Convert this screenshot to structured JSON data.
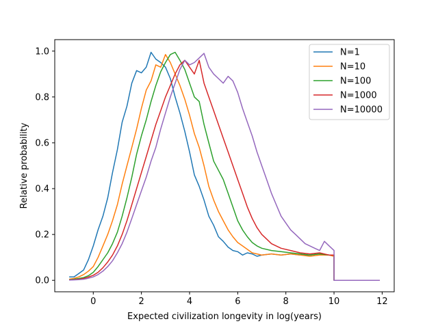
{
  "chart_data": {
    "type": "line",
    "xlabel": "Expected civilization longevity in log(years)",
    "ylabel": "Relative probability",
    "xlim": [
      -1.6,
      12.5
    ],
    "ylim": [
      -0.05,
      1.05
    ],
    "xticks": [
      0,
      2,
      4,
      6,
      8,
      10,
      12
    ],
    "yticks": [
      0.0,
      0.2,
      0.4,
      0.6,
      0.8,
      1.0
    ],
    "xtick_labels": [
      "0",
      "2",
      "4",
      "6",
      "8",
      "10",
      "12"
    ],
    "ytick_labels": [
      "0.0",
      "0.2",
      "0.4",
      "0.6",
      "0.8",
      "1.0"
    ],
    "grid": false,
    "legend_position": "top-right",
    "series": [
      {
        "name": "N=1",
        "color": "#1f77b4",
        "points": [
          [
            -1.0,
            0.015
          ],
          [
            -0.8,
            0.015
          ],
          [
            -0.6,
            0.03
          ],
          [
            -0.4,
            0.045
          ],
          [
            -0.2,
            0.09
          ],
          [
            0.0,
            0.15
          ],
          [
            0.2,
            0.22
          ],
          [
            0.4,
            0.28
          ],
          [
            0.6,
            0.36
          ],
          [
            0.8,
            0.47
          ],
          [
            1.0,
            0.57
          ],
          [
            1.2,
            0.69
          ],
          [
            1.4,
            0.76
          ],
          [
            1.6,
            0.86
          ],
          [
            1.8,
            0.915
          ],
          [
            2.0,
            0.905
          ],
          [
            2.2,
            0.93
          ],
          [
            2.4,
            0.995
          ],
          [
            2.6,
            0.965
          ],
          [
            2.8,
            0.95
          ],
          [
            3.0,
            0.93
          ],
          [
            3.2,
            0.88
          ],
          [
            3.4,
            0.8
          ],
          [
            3.6,
            0.73
          ],
          [
            3.8,
            0.65
          ],
          [
            4.0,
            0.56
          ],
          [
            4.2,
            0.46
          ],
          [
            4.4,
            0.41
          ],
          [
            4.6,
            0.35
          ],
          [
            4.8,
            0.28
          ],
          [
            5.0,
            0.24
          ],
          [
            5.2,
            0.19
          ],
          [
            5.4,
            0.17
          ],
          [
            5.6,
            0.145
          ],
          [
            5.8,
            0.13
          ],
          [
            6.0,
            0.125
          ],
          [
            6.2,
            0.11
          ],
          [
            6.4,
            0.12
          ],
          [
            6.6,
            0.115
          ],
          [
            6.8,
            0.105
          ],
          [
            7.0,
            0.11
          ],
          [
            7.4,
            0.115
          ],
          [
            7.8,
            0.11
          ],
          [
            8.2,
            0.115
          ],
          [
            8.6,
            0.11
          ],
          [
            9.0,
            0.11
          ],
          [
            9.4,
            0.115
          ],
          [
            9.8,
            0.11
          ],
          [
            10.0,
            0.105
          ],
          [
            10.0,
            0.0
          ],
          [
            11.9,
            0.0
          ]
        ]
      },
      {
        "name": "N=10",
        "color": "#ff7f0e",
        "points": [
          [
            -1.0,
            0.005
          ],
          [
            -0.8,
            0.008
          ],
          [
            -0.6,
            0.015
          ],
          [
            -0.4,
            0.025
          ],
          [
            -0.2,
            0.04
          ],
          [
            0.0,
            0.06
          ],
          [
            0.2,
            0.1
          ],
          [
            0.4,
            0.15
          ],
          [
            0.6,
            0.2
          ],
          [
            0.8,
            0.26
          ],
          [
            1.0,
            0.33
          ],
          [
            1.2,
            0.42
          ],
          [
            1.4,
            0.5
          ],
          [
            1.6,
            0.58
          ],
          [
            1.8,
            0.66
          ],
          [
            2.0,
            0.75
          ],
          [
            2.2,
            0.83
          ],
          [
            2.4,
            0.87
          ],
          [
            2.6,
            0.94
          ],
          [
            2.8,
            0.93
          ],
          [
            3.0,
            0.985
          ],
          [
            3.2,
            0.95
          ],
          [
            3.4,
            0.9
          ],
          [
            3.6,
            0.85
          ],
          [
            3.8,
            0.79
          ],
          [
            4.0,
            0.72
          ],
          [
            4.2,
            0.64
          ],
          [
            4.4,
            0.58
          ],
          [
            4.6,
            0.5
          ],
          [
            4.8,
            0.41
          ],
          [
            5.0,
            0.35
          ],
          [
            5.2,
            0.3
          ],
          [
            5.4,
            0.26
          ],
          [
            5.6,
            0.22
          ],
          [
            5.8,
            0.19
          ],
          [
            6.0,
            0.165
          ],
          [
            6.2,
            0.15
          ],
          [
            6.4,
            0.135
          ],
          [
            6.6,
            0.12
          ],
          [
            6.8,
            0.115
          ],
          [
            7.0,
            0.11
          ],
          [
            7.4,
            0.115
          ],
          [
            7.8,
            0.11
          ],
          [
            8.2,
            0.115
          ],
          [
            8.6,
            0.11
          ],
          [
            9.0,
            0.105
          ],
          [
            9.4,
            0.11
          ],
          [
            9.8,
            0.11
          ],
          [
            10.0,
            0.105
          ],
          [
            10.0,
            0.0
          ],
          [
            11.9,
            0.0
          ]
        ]
      },
      {
        "name": "N=100",
        "color": "#2ca02c",
        "points": [
          [
            -1.0,
            0.003
          ],
          [
            -0.8,
            0.005
          ],
          [
            -0.6,
            0.008
          ],
          [
            -0.4,
            0.012
          ],
          [
            -0.2,
            0.02
          ],
          [
            0.0,
            0.035
          ],
          [
            0.2,
            0.06
          ],
          [
            0.4,
            0.09
          ],
          [
            0.6,
            0.12
          ],
          [
            0.8,
            0.16
          ],
          [
            1.0,
            0.21
          ],
          [
            1.2,
            0.28
          ],
          [
            1.4,
            0.36
          ],
          [
            1.6,
            0.45
          ],
          [
            1.8,
            0.55
          ],
          [
            2.0,
            0.63
          ],
          [
            2.2,
            0.7
          ],
          [
            2.4,
            0.78
          ],
          [
            2.6,
            0.85
          ],
          [
            2.8,
            0.91
          ],
          [
            3.0,
            0.95
          ],
          [
            3.2,
            0.985
          ],
          [
            3.4,
            0.995
          ],
          [
            3.6,
            0.96
          ],
          [
            3.8,
            0.92
          ],
          [
            4.0,
            0.86
          ],
          [
            4.2,
            0.8
          ],
          [
            4.4,
            0.78
          ],
          [
            4.6,
            0.68
          ],
          [
            4.8,
            0.6
          ],
          [
            5.0,
            0.52
          ],
          [
            5.2,
            0.48
          ],
          [
            5.4,
            0.44
          ],
          [
            5.6,
            0.38
          ],
          [
            5.8,
            0.32
          ],
          [
            6.0,
            0.26
          ],
          [
            6.2,
            0.22
          ],
          [
            6.4,
            0.19
          ],
          [
            6.6,
            0.165
          ],
          [
            6.8,
            0.15
          ],
          [
            7.0,
            0.14
          ],
          [
            7.4,
            0.13
          ],
          [
            7.8,
            0.125
          ],
          [
            8.2,
            0.12
          ],
          [
            8.6,
            0.115
          ],
          [
            9.0,
            0.11
          ],
          [
            9.4,
            0.115
          ],
          [
            9.8,
            0.11
          ],
          [
            10.0,
            0.11
          ],
          [
            10.0,
            0.0
          ],
          [
            11.9,
            0.0
          ]
        ]
      },
      {
        "name": "N=1000",
        "color": "#d62728",
        "points": [
          [
            -1.0,
            0.002
          ],
          [
            -0.8,
            0.003
          ],
          [
            -0.6,
            0.005
          ],
          [
            -0.4,
            0.008
          ],
          [
            -0.2,
            0.014
          ],
          [
            0.0,
            0.022
          ],
          [
            0.2,
            0.035
          ],
          [
            0.4,
            0.055
          ],
          [
            0.6,
            0.08
          ],
          [
            0.8,
            0.11
          ],
          [
            1.0,
            0.15
          ],
          [
            1.2,
            0.2
          ],
          [
            1.4,
            0.26
          ],
          [
            1.6,
            0.33
          ],
          [
            1.8,
            0.4
          ],
          [
            2.0,
            0.47
          ],
          [
            2.2,
            0.54
          ],
          [
            2.4,
            0.61
          ],
          [
            2.6,
            0.68
          ],
          [
            2.8,
            0.74
          ],
          [
            3.0,
            0.8
          ],
          [
            3.2,
            0.85
          ],
          [
            3.4,
            0.9
          ],
          [
            3.6,
            0.94
          ],
          [
            3.8,
            0.96
          ],
          [
            4.0,
            0.93
          ],
          [
            4.2,
            0.9
          ],
          [
            4.4,
            0.96
          ],
          [
            4.6,
            0.86
          ],
          [
            4.8,
            0.8
          ],
          [
            5.0,
            0.74
          ],
          [
            5.2,
            0.68
          ],
          [
            5.4,
            0.62
          ],
          [
            5.6,
            0.56
          ],
          [
            5.8,
            0.5
          ],
          [
            6.0,
            0.44
          ],
          [
            6.2,
            0.38
          ],
          [
            6.4,
            0.32
          ],
          [
            6.6,
            0.27
          ],
          [
            6.8,
            0.23
          ],
          [
            7.0,
            0.2
          ],
          [
            7.2,
            0.18
          ],
          [
            7.4,
            0.16
          ],
          [
            7.6,
            0.15
          ],
          [
            7.8,
            0.14
          ],
          [
            8.2,
            0.13
          ],
          [
            8.6,
            0.12
          ],
          [
            9.0,
            0.115
          ],
          [
            9.4,
            0.12
          ],
          [
            9.8,
            0.11
          ],
          [
            10.0,
            0.11
          ],
          [
            10.0,
            0.0
          ],
          [
            11.9,
            0.0
          ]
        ]
      },
      {
        "name": "N=10000",
        "color": "#9467bd",
        "points": [
          [
            -1.0,
            0.001
          ],
          [
            -0.8,
            0.002
          ],
          [
            -0.6,
            0.003
          ],
          [
            -0.4,
            0.005
          ],
          [
            -0.2,
            0.009
          ],
          [
            0.0,
            0.015
          ],
          [
            0.2,
            0.025
          ],
          [
            0.4,
            0.04
          ],
          [
            0.6,
            0.06
          ],
          [
            0.8,
            0.085
          ],
          [
            1.0,
            0.12
          ],
          [
            1.2,
            0.16
          ],
          [
            1.4,
            0.21
          ],
          [
            1.6,
            0.27
          ],
          [
            1.8,
            0.33
          ],
          [
            2.0,
            0.39
          ],
          [
            2.2,
            0.45
          ],
          [
            2.4,
            0.52
          ],
          [
            2.6,
            0.58
          ],
          [
            2.8,
            0.66
          ],
          [
            3.0,
            0.73
          ],
          [
            3.2,
            0.8
          ],
          [
            3.4,
            0.86
          ],
          [
            3.6,
            0.92
          ],
          [
            3.8,
            0.96
          ],
          [
            4.0,
            0.94
          ],
          [
            4.2,
            0.95
          ],
          [
            4.4,
            0.97
          ],
          [
            4.6,
            0.99
          ],
          [
            4.8,
            0.93
          ],
          [
            5.0,
            0.9
          ],
          [
            5.2,
            0.88
          ],
          [
            5.4,
            0.86
          ],
          [
            5.6,
            0.89
          ],
          [
            5.8,
            0.87
          ],
          [
            6.0,
            0.82
          ],
          [
            6.2,
            0.75
          ],
          [
            6.4,
            0.69
          ],
          [
            6.6,
            0.63
          ],
          [
            6.8,
            0.56
          ],
          [
            7.0,
            0.5
          ],
          [
            7.2,
            0.44
          ],
          [
            7.4,
            0.38
          ],
          [
            7.6,
            0.33
          ],
          [
            7.8,
            0.28
          ],
          [
            8.0,
            0.25
          ],
          [
            8.2,
            0.22
          ],
          [
            8.4,
            0.2
          ],
          [
            8.6,
            0.18
          ],
          [
            8.8,
            0.16
          ],
          [
            9.0,
            0.15
          ],
          [
            9.2,
            0.14
          ],
          [
            9.4,
            0.13
          ],
          [
            9.6,
            0.17
          ],
          [
            9.8,
            0.15
          ],
          [
            10.0,
            0.13
          ],
          [
            10.0,
            0.0
          ],
          [
            11.9,
            0.0
          ]
        ]
      }
    ]
  }
}
